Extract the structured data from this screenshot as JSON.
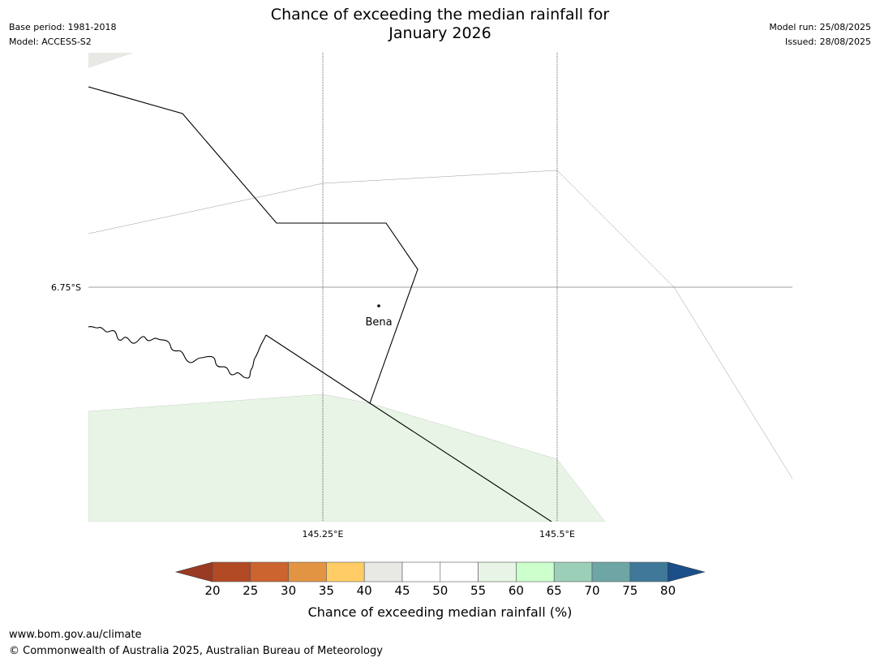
{
  "header": {
    "title_line1": "Chance of exceeding the median rainfall for",
    "title_line2": "January 2026",
    "base_period": "Base period: 1981-2018",
    "model": "Model: ACCESS-S2",
    "model_run": "Model run: 25/08/2025",
    "issued": "Issued: 28/08/2025"
  },
  "map": {
    "lat_labels": [
      "6.75°S"
    ],
    "lon_labels": [
      "145.25°E",
      "145.5°E"
    ],
    "place": {
      "name": "Bena"
    },
    "colors": {
      "outside_land": "#e8e8e4",
      "green_55_60": "#e8f4e6",
      "boundary": "#000000",
      "grid": "#000000"
    }
  },
  "colorbar": {
    "ticks": [
      "20",
      "25",
      "30",
      "35",
      "40",
      "45",
      "50",
      "55",
      "60",
      "65",
      "70",
      "75",
      "80"
    ],
    "colors": [
      "#9b3a22",
      "#b24a26",
      "#cc6430",
      "#e39442",
      "#ffcc66",
      "#e8e8e4",
      "#ffffff",
      "#ffffff",
      "#e8f4e6",
      "#ccffcc",
      "#9ccfb8",
      "#6ea6a6",
      "#3f7898",
      "#1a4f8a"
    ],
    "label": "Chance of exceeding median rainfall (%)"
  },
  "footer": {
    "url": "www.bom.gov.au/climate",
    "copyright": "© Commonwealth of Australia 2025, Australian Bureau of Meteorology"
  }
}
